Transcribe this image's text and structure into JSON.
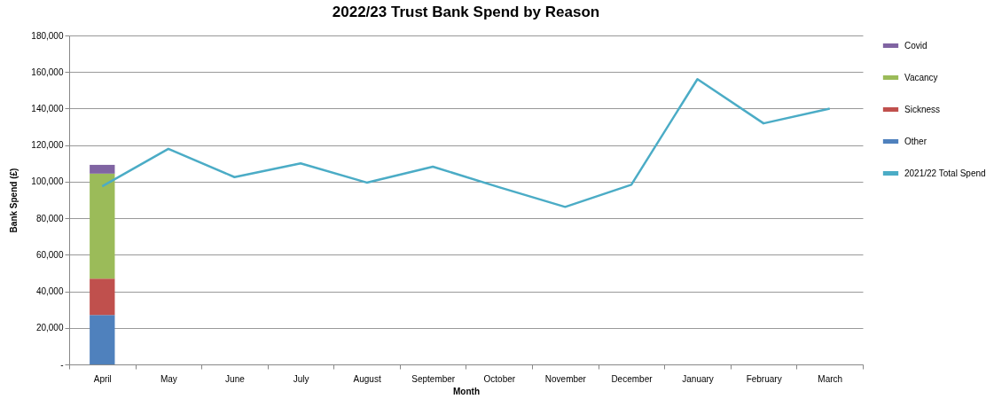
{
  "chart_data": {
    "type": "bar",
    "title": "2022/23 Trust Bank Spend by Reason",
    "xlabel": "Month",
    "ylabel": "Bank Spend (£)",
    "categories": [
      "April",
      "May",
      "June",
      "July",
      "August",
      "September",
      "October",
      "November",
      "December",
      "January",
      "February",
      "March"
    ],
    "stacked": true,
    "grid": "y",
    "legend": "right",
    "ylim": [
      0,
      180000
    ],
    "yticks": [
      {
        "value": 0,
        "label": "-"
      },
      {
        "value": 20000,
        "label": "20,000"
      },
      {
        "value": 40000,
        "label": "40,000"
      },
      {
        "value": 60000,
        "label": "60,000"
      },
      {
        "value": 80000,
        "label": "80,000"
      },
      {
        "value": 100000,
        "label": "100,000"
      },
      {
        "value": 120000,
        "label": "120,000"
      },
      {
        "value": 140000,
        "label": "140,000"
      },
      {
        "value": 160000,
        "label": "160,000"
      },
      {
        "value": 180000,
        "label": "180,000"
      }
    ],
    "series": [
      {
        "name": "Other",
        "color": "#4f81bd",
        "values": [
          27000,
          null,
          null,
          null,
          null,
          null,
          null,
          null,
          null,
          null,
          null,
          null
        ]
      },
      {
        "name": "Sickness",
        "color": "#c0504d",
        "values": [
          20000,
          null,
          null,
          null,
          null,
          null,
          null,
          null,
          null,
          null,
          null,
          null
        ]
      },
      {
        "name": "Vacancy",
        "color": "#9bbb59",
        "values": [
          57400,
          null,
          null,
          null,
          null,
          null,
          null,
          null,
          null,
          null,
          null,
          null
        ]
      },
      {
        "name": "Covid",
        "color": "#8064a2",
        "values": [
          4800,
          null,
          null,
          null,
          null,
          null,
          null,
          null,
          null,
          null,
          null,
          null
        ]
      },
      {
        "name": "2021/22 Total Spend",
        "type": "line",
        "color": "#4bacc6",
        "values": [
          97500,
          118000,
          102500,
          110000,
          99500,
          108200,
          97000,
          86200,
          98300,
          156100,
          131900,
          140000
        ]
      }
    ]
  }
}
